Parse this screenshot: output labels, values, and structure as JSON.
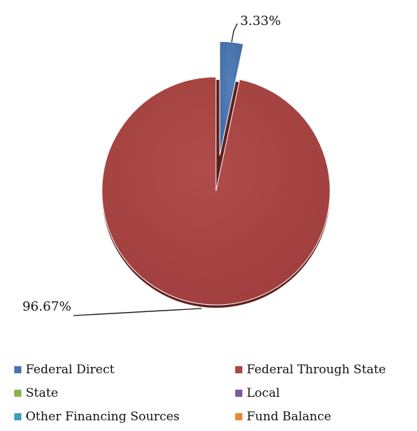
{
  "chart_data": {
    "type": "pie",
    "title": "",
    "series": [
      {
        "name": "",
        "slices": [
          {
            "label": "Federal Direct",
            "value": 3.33,
            "data_label": "3.33%",
            "color": "#4a74ad",
            "exploded": true
          },
          {
            "label": "Federal Through State",
            "value": 96.67,
            "data_label": "96.67%",
            "color": "#aa4644",
            "exploded": false
          },
          {
            "label": "State",
            "value": 0,
            "data_label": "",
            "color": "#8db04e",
            "exploded": false
          },
          {
            "label": "Local",
            "value": 0,
            "data_label": "",
            "color": "#7b5c9c",
            "exploded": false
          },
          {
            "label": "Other Financing Sources",
            "value": 0,
            "data_label": "",
            "color": "#3ea0b8",
            "exploded": false
          },
          {
            "label": "Fund Balance",
            "value": 0,
            "data_label": "",
            "color": "#e98a37",
            "exploded": false
          }
        ]
      }
    ],
    "legend": {
      "position": "bottom",
      "items": [
        {
          "label": "Federal Direct",
          "color": "#4a74ad"
        },
        {
          "label": "Federal Through State",
          "color": "#aa4644"
        },
        {
          "label": "State",
          "color": "#8db04e"
        },
        {
          "label": "Local",
          "color": "#7b5c9c"
        },
        {
          "label": "Other Financing Sources",
          "color": "#3ea0b8"
        },
        {
          "label": "Fund Balance",
          "color": "#e98a37"
        }
      ]
    }
  }
}
